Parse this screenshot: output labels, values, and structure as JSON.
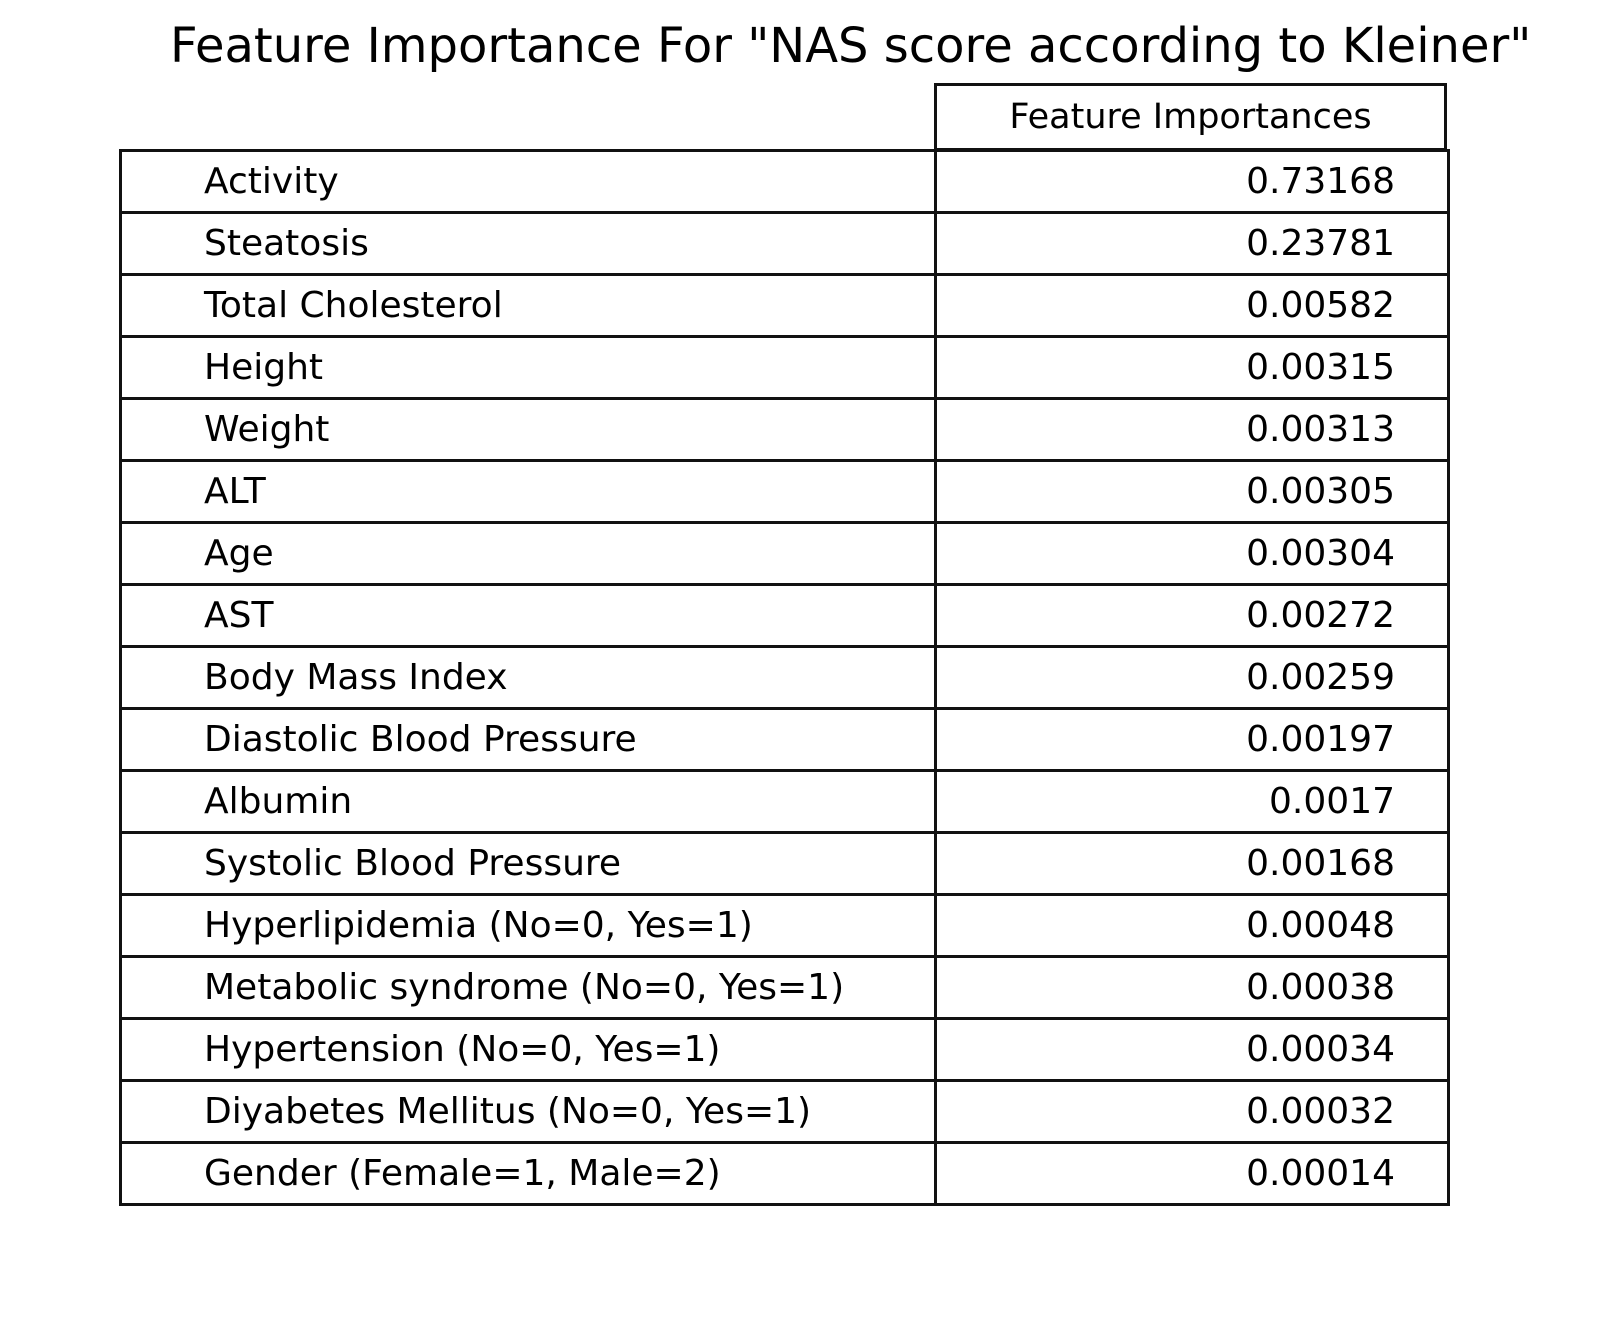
{
  "chart_data": {
    "type": "table",
    "title": "Feature Importance For \"NAS score according to Kleiner\"",
    "column_header": "Feature Importances",
    "rows": [
      {
        "feature": "Activity",
        "importance": "0.73168"
      },
      {
        "feature": "Steatosis",
        "importance": "0.23781"
      },
      {
        "feature": "Total Cholesterol",
        "importance": "0.00582"
      },
      {
        "feature": "Height",
        "importance": "0.00315"
      },
      {
        "feature": "Weight",
        "importance": "0.00313"
      },
      {
        "feature": "ALT",
        "importance": "0.00305"
      },
      {
        "feature": "Age",
        "importance": "0.00304"
      },
      {
        "feature": "AST",
        "importance": "0.00272"
      },
      {
        "feature": "Body Mass Index",
        "importance": "0.00259"
      },
      {
        "feature": "Diastolic Blood Pressure",
        "importance": "0.00197"
      },
      {
        "feature": "Albumin",
        "importance": "0.0017"
      },
      {
        "feature": "Systolic Blood Pressure",
        "importance": "0.00168"
      },
      {
        "feature": "Hyperlipidemia (No=0, Yes=1)",
        "importance": "0.00048"
      },
      {
        "feature": "Metabolic syndrome (No=0, Yes=1)",
        "importance": "0.00038"
      },
      {
        "feature": "Hypertension (No=0, Yes=1)",
        "importance": "0.00034"
      },
      {
        "feature": "Diyabetes Mellitus (No=0, Yes=1)",
        "importance": "0.00032"
      },
      {
        "feature": "Gender (Female=1, Male=2)",
        "importance": "0.00014"
      }
    ]
  }
}
